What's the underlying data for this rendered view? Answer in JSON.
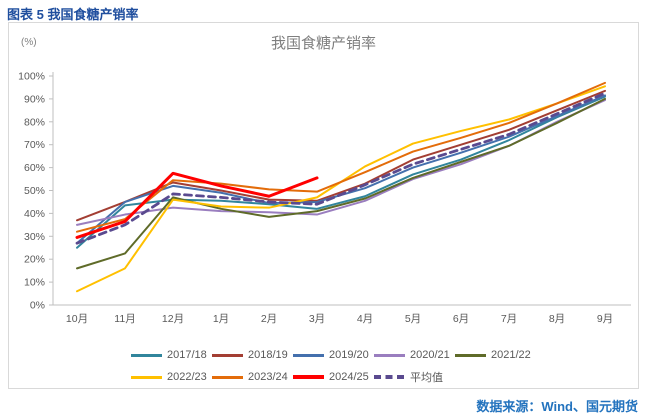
{
  "caption": "图表 5 我国食糖产销率",
  "source": "数据来源：Wind、国元期货",
  "chart": {
    "title": "我国食糖产销率",
    "unit_label": "(%)"
  },
  "chart_data": {
    "type": "line",
    "title": "我国食糖产销率",
    "categories": [
      "10月",
      "11月",
      "12月",
      "1月",
      "2月",
      "3月",
      "4月",
      "5月",
      "6月",
      "7月",
      "8月",
      "9月"
    ],
    "ylim": [
      0,
      100
    ],
    "y_tick_step": 10,
    "y_tick_labels": [
      "0%",
      "10%",
      "20%",
      "30%",
      "40%",
      "50%",
      "60%",
      "70%",
      "80%",
      "90%",
      "100%"
    ],
    "grid": false,
    "legend_position": "bottom",
    "series": [
      {
        "name": "2017/18",
        "color": "#31859C",
        "width": 2,
        "dash": "",
        "values": [
          25,
          43.5,
          46,
          45.5,
          44,
          42,
          47.5,
          57,
          63.5,
          72,
          82,
          91
        ]
      },
      {
        "name": "2018/19",
        "color": "#A33E33",
        "width": 2,
        "dash": "",
        "values": [
          37,
          45,
          53.5,
          50,
          46,
          45.5,
          53,
          63.5,
          70,
          76.5,
          85,
          93.5
        ]
      },
      {
        "name": "2019/20",
        "color": "#4470AD",
        "width": 2,
        "dash": "",
        "values": [
          27,
          45,
          52,
          49,
          44.5,
          45,
          51,
          60,
          66.5,
          73.5,
          82.5,
          91.5
        ]
      },
      {
        "name": "2020/21",
        "color": "#9A7EBF",
        "width": 2,
        "dash": "",
        "values": [
          35,
          39.5,
          42.5,
          41,
          40.5,
          39.5,
          45.5,
          55,
          61.5,
          69.5,
          80,
          89.5
        ]
      },
      {
        "name": "2021/22",
        "color": "#5F6B29",
        "width": 2,
        "dash": "",
        "values": [
          16,
          22.5,
          47,
          42,
          38.5,
          41,
          46.5,
          55.5,
          62.5,
          69.5,
          79.5,
          90
        ]
      },
      {
        "name": "2022/23",
        "color": "#FFC000",
        "width": 2,
        "dash": "",
        "values": [
          6,
          16,
          46,
          43,
          42.5,
          47,
          60.5,
          70.5,
          76,
          81,
          88,
          95.5
        ]
      },
      {
        "name": "2023/24",
        "color": "#E36C0A",
        "width": 2,
        "dash": "",
        "values": [
          32,
          37.5,
          54.5,
          53,
          50.5,
          49.5,
          58,
          67,
          73,
          79.5,
          88,
          97
        ]
      },
      {
        "name": "2024/25",
        "color": "#FF0000",
        "width": 3,
        "dash": "",
        "values": [
          29.5,
          36.5,
          57.5,
          52,
          47.5,
          55.5
        ]
      },
      {
        "name": "平均值",
        "color": "#5A4A8F",
        "width": 2.8,
        "dash": "7,5",
        "values": [
          27,
          35,
          48.5,
          47,
          45,
          44,
          52.5,
          61.5,
          68,
          74.5,
          83.5,
          92.5
        ]
      }
    ]
  }
}
